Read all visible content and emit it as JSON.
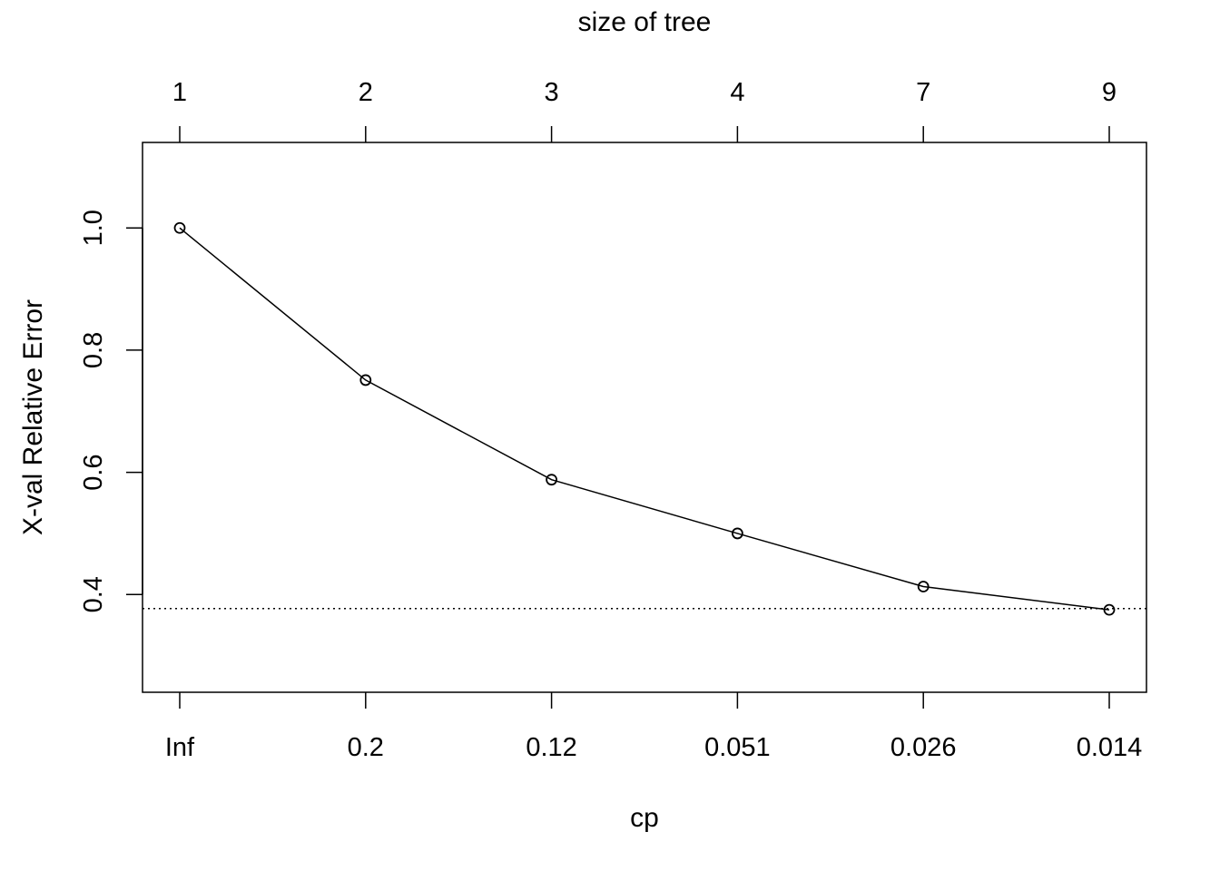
{
  "chart_data": {
    "type": "line",
    "title": "",
    "xlabel": "cp",
    "ylabel": "X-val Relative Error",
    "top_axis_label": "size of tree",
    "x_tick_labels": [
      "Inf",
      "0.2",
      "0.12",
      "0.051",
      "0.026",
      "0.014"
    ],
    "top_tick_labels": [
      "1",
      "2",
      "3",
      "4",
      "7",
      "9"
    ],
    "y_ticks": [
      0.4,
      0.6,
      0.8,
      1.0
    ],
    "y_tick_labels": [
      "0.4",
      "0.6",
      "0.8",
      "1.0"
    ],
    "ylim": [
      0.24,
      1.14
    ],
    "series": [
      {
        "values": [
          1.0,
          0.751,
          0.588,
          0.5,
          0.413,
          0.375
        ],
        "marker": "open-circle",
        "line": "solid",
        "color": "#000000"
      }
    ],
    "reference_line": {
      "y": 0.377,
      "style": "dotted",
      "color": "#000000"
    },
    "grid": false,
    "legend": "none"
  }
}
